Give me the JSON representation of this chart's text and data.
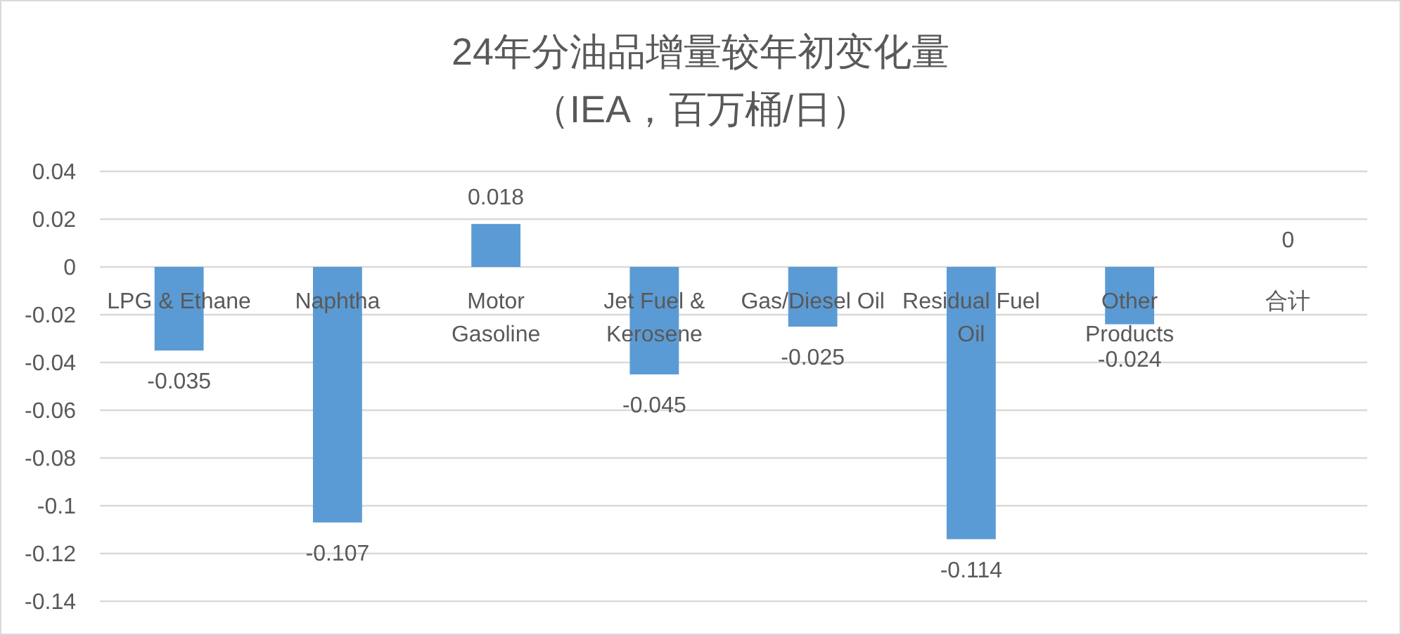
{
  "chart_data": {
    "type": "bar",
    "title": "24年分油品增量较年初变化量",
    "subtitle": "（IEA，百万桶/日）",
    "categories": [
      "LPG & Ethane",
      "Naphtha",
      "Motor Gasoline",
      "Jet Fuel & Kerosene",
      "Gas/Diesel Oil",
      "Residual Fuel Oil",
      "Other Products",
      "合计"
    ],
    "values": [
      -0.035,
      -0.107,
      0.018,
      -0.045,
      -0.025,
      -0.114,
      -0.024,
      0
    ],
    "color": "#5b9bd5",
    "ylim": [
      -0.14,
      0.04
    ],
    "yticks": [
      -0.14,
      -0.12,
      -0.1,
      -0.08,
      -0.06,
      -0.04,
      -0.02,
      0,
      0.02,
      0.04
    ],
    "grid": "y",
    "data_labels": true
  }
}
